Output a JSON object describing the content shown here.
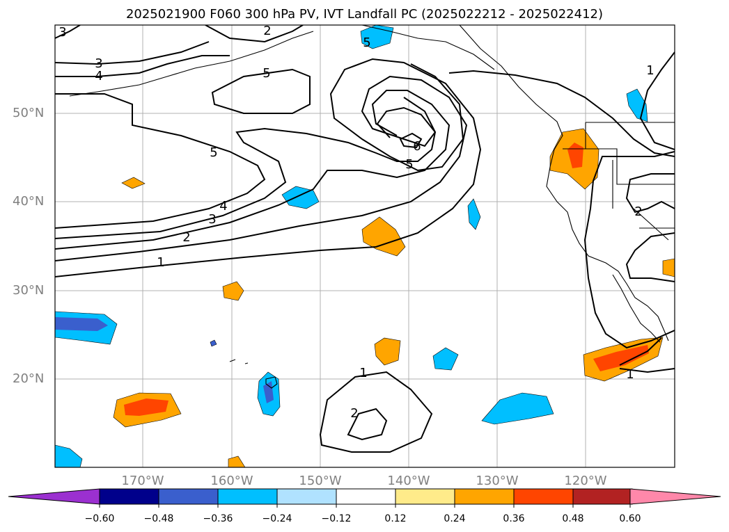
{
  "title": "2025021900 F060 300 hPa PV, IVT Landfall PC (2025022212 - 2025022412)",
  "lat_labels": [
    "50°N",
    "40°N",
    "30°N",
    "20°N"
  ],
  "lon_labels": [
    "170°W",
    "160°W",
    "150°W",
    "140°W",
    "130°W",
    "120°W"
  ],
  "colorbar": {
    "ticks": [
      "−0.60",
      "−0.48",
      "−0.36",
      "−0.24",
      "−0.12",
      "0.12",
      "0.24",
      "0.36",
      "0.48",
      "0.60"
    ],
    "colors": [
      "#9b30d0",
      "#00008b",
      "#3a5fcd",
      "#00bfff",
      "#b0e2ff",
      "#ffffff",
      "#ffeb8a",
      "#ffa500",
      "#ff4500",
      "#b22222",
      "#ff88aa"
    ]
  },
  "contour_labels": [
    "3",
    "2",
    "3",
    "4",
    "5",
    "5",
    "5",
    "6",
    "5",
    "4",
    "3",
    "2",
    "1",
    "1",
    "2",
    "1",
    "1",
    "2"
  ],
  "map_extent": {
    "lon": [
      -180,
      -110
    ],
    "lat": [
      10,
      60
    ]
  },
  "variables": {
    "contours": "300 hPa PV",
    "shading": "IVT Landfall PC"
  }
}
